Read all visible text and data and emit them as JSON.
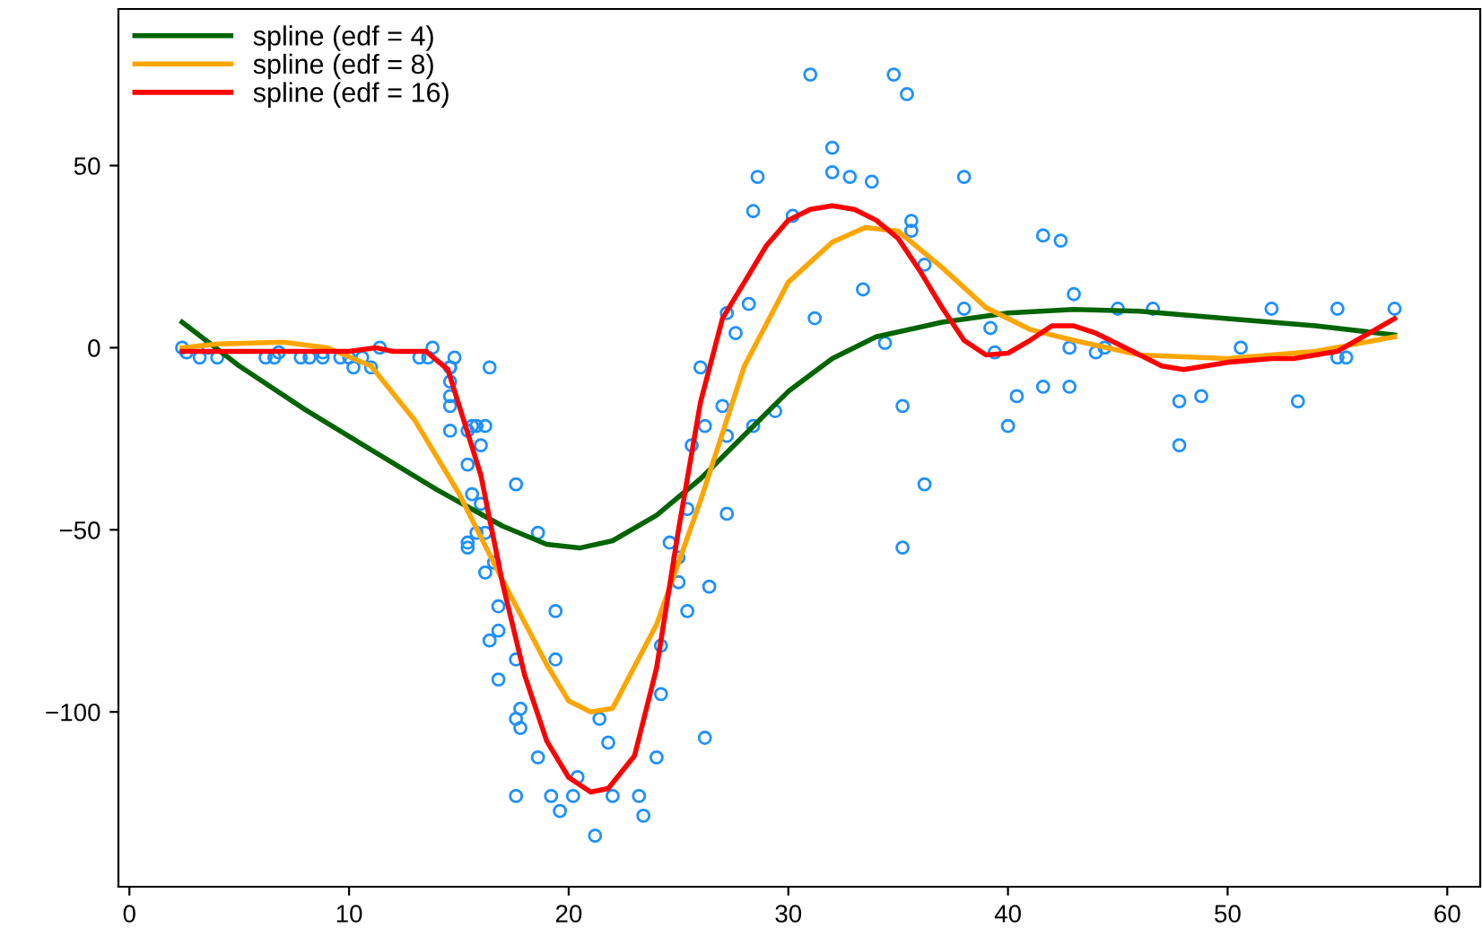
{
  "chart_data": {
    "type": "scatter",
    "xlim": [
      -0.5,
      61.5
    ],
    "ylim": [
      -148,
      93
    ],
    "xticks": [
      0,
      10,
      20,
      30,
      40,
      50,
      60
    ],
    "yticks": [
      -100,
      -50,
      0,
      50
    ],
    "grid": false,
    "legend": "top left",
    "series": [
      {
        "color": "#1e90ff",
        "marker": "circle",
        "x": [
          2.4,
          2.6,
          3.2,
          3.6,
          4.0,
          6.2,
          6.6,
          6.8,
          7.8,
          8.2,
          8.8,
          8.8,
          9.6,
          10.0,
          10.2,
          10.6,
          11.0,
          11.4,
          13.2,
          13.6,
          13.8,
          14.6,
          14.6,
          14.6,
          14.6,
          14.6,
          14.6,
          14.8,
          15.4,
          15.4,
          15.4,
          15.4,
          15.6,
          15.6,
          15.8,
          15.8,
          16.0,
          16.0,
          16.2,
          16.2,
          16.2,
          16.4,
          16.4,
          16.6,
          16.8,
          16.8,
          16.8,
          17.6,
          17.6,
          17.6,
          17.6,
          17.8,
          17.8,
          18.6,
          18.6,
          19.2,
          19.4,
          19.4,
          19.6,
          20.2,
          20.4,
          21.2,
          21.4,
          21.8,
          22.0,
          23.2,
          23.4,
          24.0,
          24.2,
          24.2,
          24.6,
          25.0,
          25.0,
          25.4,
          25.4,
          25.6,
          26.0,
          26.2,
          26.2,
          26.4,
          27.0,
          27.2,
          27.2,
          27.2,
          27.6,
          28.2,
          28.4,
          28.4,
          28.6,
          29.4,
          30.2,
          31.0,
          31.2,
          32.0,
          32.0,
          32.8,
          33.4,
          33.8,
          34.4,
          34.8,
          35.2,
          35.2,
          35.4,
          35.6,
          35.6,
          36.2,
          36.2,
          38.0,
          38.0,
          39.2,
          39.4,
          40.0,
          40.4,
          41.6,
          41.6,
          42.4,
          42.8,
          42.8,
          43.0,
          44.0,
          44.4,
          45.0,
          46.6,
          47.8,
          47.8,
          48.8,
          50.6,
          52.0,
          53.2,
          55.0,
          55.0,
          55.4,
          57.6
        ],
        "values": [
          0.0,
          -1.3,
          -2.7,
          0.0,
          -2.7,
          -2.7,
          -2.7,
          -1.3,
          -2.7,
          -2.7,
          -1.3,
          -2.7,
          -2.7,
          -2.7,
          -5.4,
          -2.7,
          -5.4,
          0.0,
          -2.7,
          -2.7,
          0.0,
          -13.3,
          -5.4,
          -5.4,
          -9.3,
          -16.0,
          -22.8,
          -2.7,
          -22.8,
          -32.1,
          -53.5,
          -54.9,
          -40.2,
          -21.5,
          -21.5,
          -50.8,
          -42.9,
          -26.8,
          -21.5,
          -50.8,
          -61.7,
          -5.4,
          -80.4,
          -59.0,
          -71.0,
          -91.1,
          -77.7,
          -37.5,
          -85.6,
          -123.1,
          -101.9,
          -99.1,
          -104.4,
          -112.5,
          -50.8,
          -123.1,
          -85.6,
          -72.3,
          -127.2,
          -123.1,
          -117.9,
          -134.0,
          -101.9,
          -108.4,
          -123.1,
          -123.1,
          -128.5,
          -112.5,
          -95.1,
          -81.8,
          -53.5,
          -64.4,
          -57.6,
          -72.3,
          -44.3,
          -26.8,
          -5.4,
          -107.1,
          -21.5,
          -65.6,
          -16.0,
          -45.6,
          -24.2,
          9.5,
          4.0,
          12.0,
          -21.5,
          37.5,
          46.9,
          -17.4,
          36.2,
          75.0,
          8.1,
          54.9,
          48.2,
          46.9,
          16.0,
          45.6,
          1.3,
          75.0,
          -16.0,
          -54.9,
          69.6,
          34.8,
          32.1,
          -37.5,
          22.8,
          46.9,
          10.7,
          5.4,
          -1.3,
          -21.5,
          -13.3,
          30.8,
          -10.7,
          29.4,
          0.0,
          -10.7,
          14.7,
          -1.3,
          0.0,
          10.7,
          10.7,
          -26.8,
          -14.7,
          -13.3,
          0.0,
          10.7,
          -14.7,
          -2.7,
          10.7,
          -2.7,
          10.7
        ]
      },
      {
        "type": "line",
        "name": "spline (edf = 4)",
        "color": "#006400",
        "line_style": "solid",
        "x": [
          2.4,
          5,
          8,
          11,
          14,
          17,
          19,
          20.5,
          22,
          24,
          26,
          28,
          30,
          32,
          34,
          37,
          40,
          43,
          46,
          50,
          54,
          57.6
        ],
        "values": [
          7,
          -5,
          -17,
          -28,
          -39,
          -49,
          -54,
          -55,
          -53,
          -46,
          -36,
          -24,
          -12,
          -3,
          3,
          7,
          9.5,
          10.5,
          10,
          8,
          6,
          3.5
        ]
      },
      {
        "type": "line",
        "name": "spline (edf = 8)",
        "color": "#ffa500",
        "line_style": "solid",
        "x": [
          2.4,
          4,
          7,
          9,
          11,
          13,
          15,
          17,
          19,
          20,
          21,
          22,
          24,
          26,
          28,
          30,
          32,
          33.5,
          35,
          37,
          39,
          41,
          43,
          46,
          50,
          54,
          57.6
        ],
        "values": [
          0,
          1,
          1.5,
          0,
          -5,
          -20,
          -40,
          -64,
          -87,
          -97,
          -100,
          -99,
          -76,
          -42,
          -5,
          18,
          29,
          33,
          32,
          22,
          11,
          5,
          2,
          -2,
          -3,
          -1,
          3
        ]
      },
      {
        "type": "line",
        "name": "spline (edf = 16)",
        "color": "#ff0000",
        "line_style": "solid",
        "x": [
          2.4,
          5,
          8,
          10,
          11.2,
          12,
          13.5,
          14.5,
          16,
          17,
          18,
          19,
          20,
          21,
          21.8,
          23,
          24,
          25,
          26,
          27,
          28,
          29,
          30,
          31,
          32,
          33,
          34,
          35,
          36,
          37,
          38,
          39,
          40,
          41,
          42,
          43,
          44,
          45,
          46,
          47,
          48,
          50,
          52,
          53,
          55,
          57.6
        ],
        "values": [
          -1,
          -1,
          -1,
          -1,
          0,
          -1,
          -1,
          -6,
          -35,
          -65,
          -90,
          -108,
          -118,
          -122,
          -121,
          -112,
          -88,
          -50,
          -15,
          8,
          18,
          28,
          35,
          38,
          39,
          38,
          35,
          30,
          21,
          11,
          2,
          -2,
          -1.5,
          2,
          6,
          6,
          4,
          1,
          -2,
          -5,
          -6,
          -4,
          -3,
          -3,
          -1,
          8
        ]
      }
    ]
  }
}
